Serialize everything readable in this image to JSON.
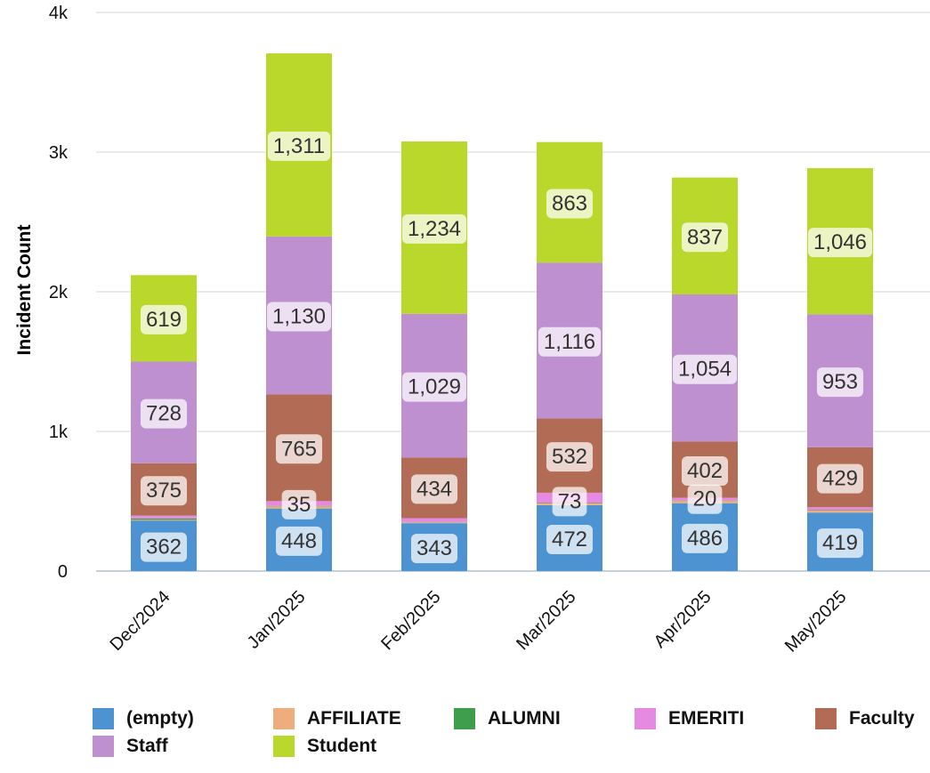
{
  "chart_data": {
    "type": "bar",
    "stacked": true,
    "ylabel": "Incident Count",
    "xlabel": "",
    "ylim": [
      0,
      4000
    ],
    "yticks": [
      0,
      1000,
      2000,
      3000,
      4000
    ],
    "ytick_labels": [
      "0",
      "1k",
      "2k",
      "3k",
      "4k"
    ],
    "grid": true,
    "legend_position": "bottom",
    "categories": [
      "Dec/2024",
      "Jan/2025",
      "Feb/2025",
      "Mar/2025",
      "Apr/2025",
      "May/2025"
    ],
    "series": [
      {
        "name": "(empty)",
        "color": "#4e93d1",
        "values": [
          362,
          448,
          343,
          472,
          486,
          419
        ],
        "labels": [
          "362",
          "448",
          "343",
          "472",
          "486",
          "419"
        ]
      },
      {
        "name": "AFFILIATE",
        "color": "#f0ad7c",
        "values": [
          5,
          15,
          6,
          12,
          16,
          14
        ],
        "labels": [
          "",
          "",
          "",
          "",
          "",
          ""
        ]
      },
      {
        "name": "ALUMNI",
        "color": "#3f9e4c",
        "values": [
          10,
          3,
          3,
          4,
          3,
          4
        ],
        "labels": [
          "",
          "",
          "",
          "",
          "",
          ""
        ]
      },
      {
        "name": "EMERITI",
        "color": "#e689e0",
        "values": [
          20,
          35,
          27,
          73,
          20,
          20
        ],
        "labels": [
          "",
          "35",
          "",
          "73",
          "20",
          ""
        ]
      },
      {
        "name": "Faculty",
        "color": "#b26b55",
        "values": [
          375,
          765,
          434,
          532,
          402,
          429
        ],
        "labels": [
          "375",
          "765",
          "434",
          "532",
          "402",
          "429"
        ]
      },
      {
        "name": "Staff",
        "color": "#be90cf",
        "values": [
          728,
          1130,
          1029,
          1116,
          1054,
          953
        ],
        "labels": [
          "728",
          "1,130",
          "1,029",
          "1,116",
          "1,054",
          "953"
        ]
      },
      {
        "name": "Student",
        "color": "#bad72b",
        "values": [
          619,
          1311,
          1234,
          863,
          837,
          1046
        ],
        "labels": [
          "619",
          "1,311",
          "1,234",
          "863",
          "837",
          "1,046"
        ]
      }
    ]
  }
}
